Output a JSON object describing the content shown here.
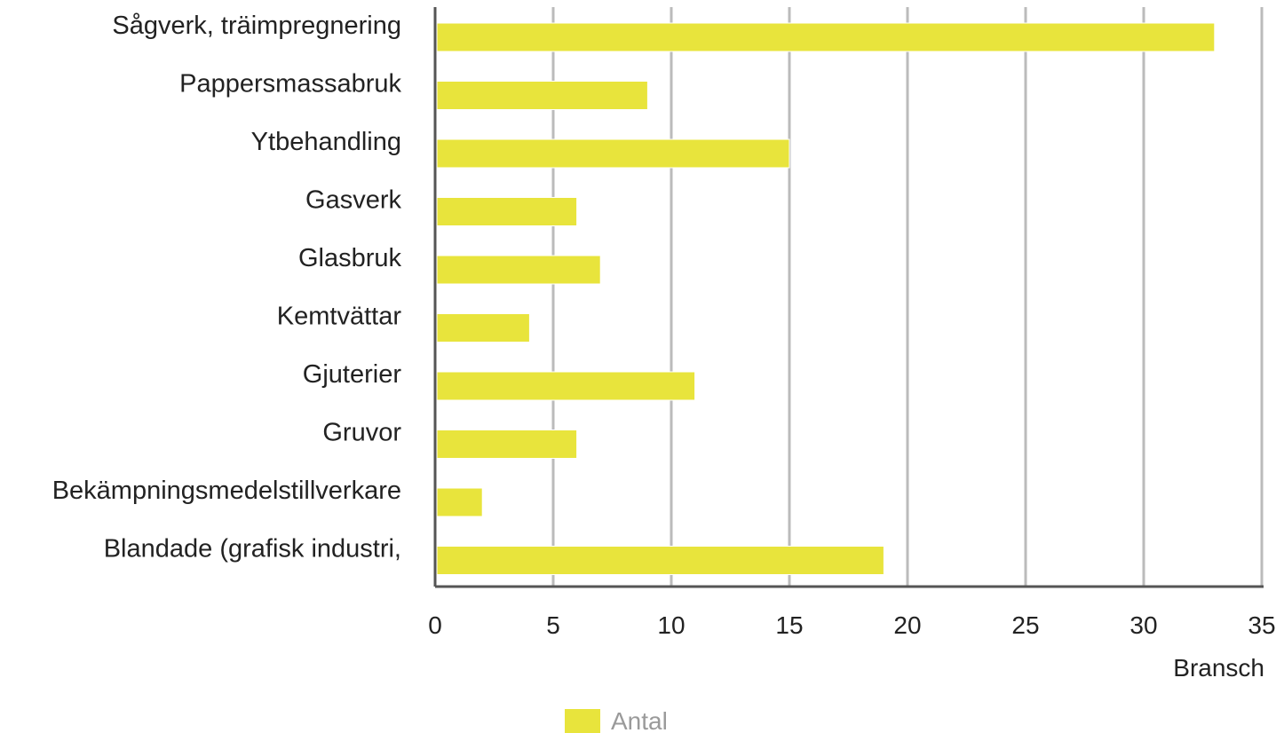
{
  "chart_data": {
    "type": "bar",
    "orientation": "horizontal",
    "categories": [
      "Sågverk, träimpregnering",
      "Pappersmassabruk",
      "Ytbehandling",
      "Gasverk",
      "Glasbruk",
      "Kemtvättar",
      "Gjuterier",
      "Gruvor",
      "Bekämpningsmedelstillverkare",
      "Blandade (grafisk industri,"
    ],
    "series": [
      {
        "name": "Antal",
        "values": [
          33,
          9,
          15,
          6,
          7,
          4,
          11,
          6,
          2,
          19
        ],
        "color": "#e8e43c"
      }
    ],
    "xlabel": "Bransch",
    "ylabel": "",
    "xlim": [
      0,
      35
    ],
    "xticks": [
      0,
      5,
      10,
      15,
      20,
      25,
      30,
      35
    ],
    "grid": "vertical",
    "gridColor": "#bbbbbb",
    "axisColor": "#555555",
    "legend": {
      "position": "bottom",
      "entries": [
        "Antal"
      ]
    }
  }
}
